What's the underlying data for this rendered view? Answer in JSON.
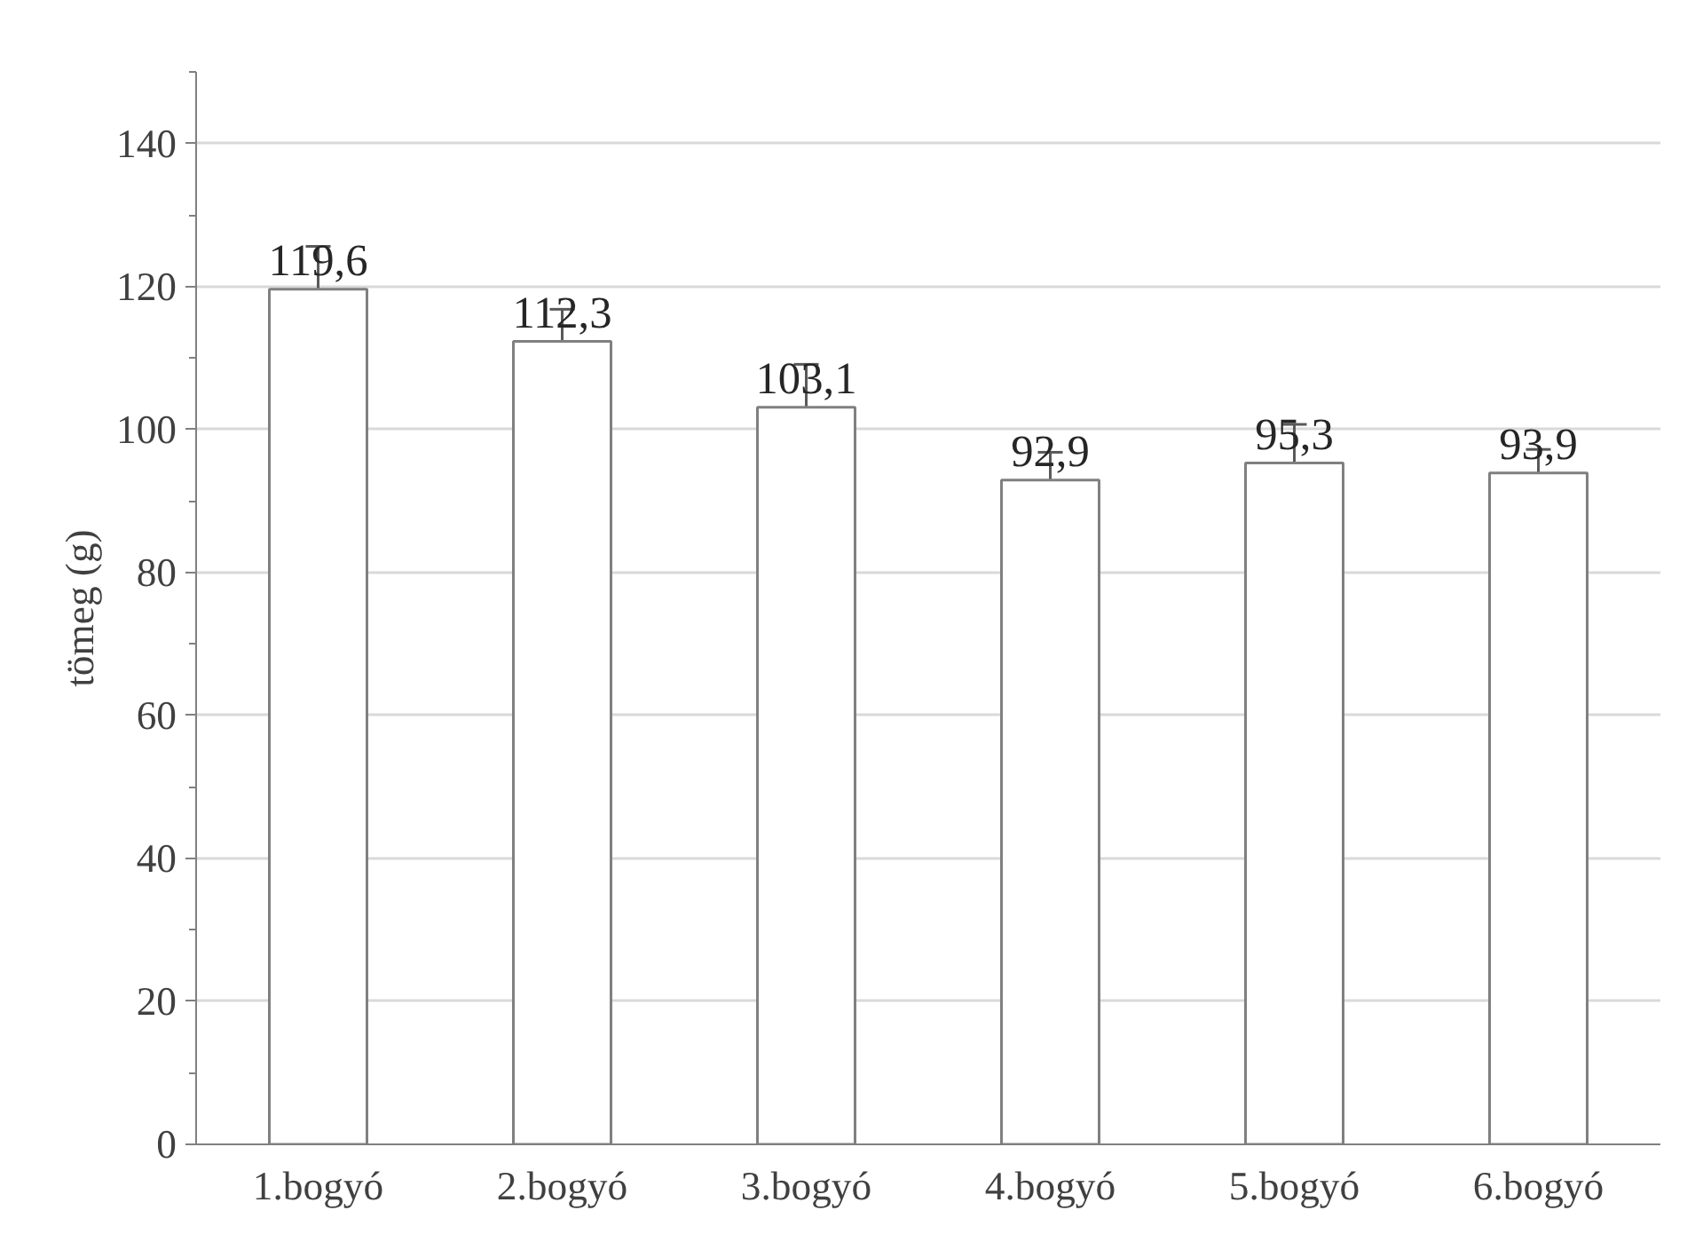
{
  "chart_data": {
    "type": "bar",
    "ylabel": "tömeg (g)",
    "categories": [
      "1.bogyó",
      "2.bogyó",
      "3.bogyó",
      "4.bogyó",
      "5.bogyó",
      "6.bogyó"
    ],
    "values": [
      119.6,
      112.3,
      103.1,
      92.9,
      95.3,
      93.9
    ],
    "errors": [
      6.0,
      4.5,
      6.0,
      3.9,
      5.4,
      3.3
    ],
    "value_labels": [
      "119,6",
      "112,3",
      "103,1",
      "92,9",
      "95,3",
      "93,9"
    ],
    "color": "#ffffff",
    "ylim": [
      0,
      150
    ],
    "yticks": [
      0,
      20,
      40,
      60,
      80,
      100,
      120,
      140
    ],
    "grid": "y"
  }
}
